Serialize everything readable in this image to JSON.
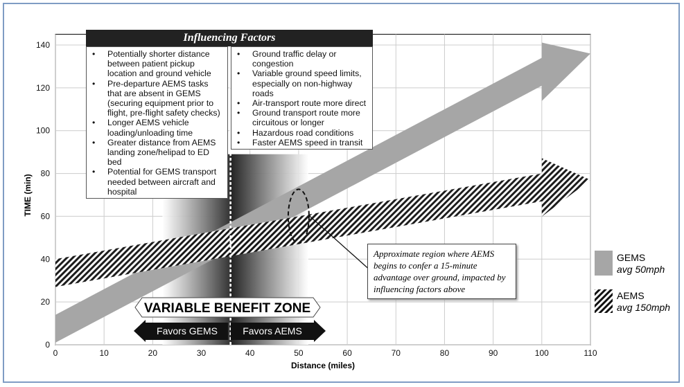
{
  "chart_data": {
    "type": "area",
    "xlabel": "Distance (miles)",
    "ylabel": "TIME (min)",
    "xlim": [
      0,
      110
    ],
    "ylim": [
      0,
      145
    ],
    "xticks": [
      0,
      10,
      20,
      30,
      40,
      50,
      60,
      70,
      80,
      90,
      100,
      110
    ],
    "yticks": [
      0,
      20,
      40,
      60,
      80,
      100,
      120,
      140
    ],
    "grid": true,
    "legend_position": "right",
    "series": [
      {
        "name": "GEMS",
        "sublabel": "avg 50mph",
        "style": "solid",
        "color": "#a6a6a6",
        "band": {
          "x": [
            0,
            100
          ],
          "lower": [
            1,
            121
          ],
          "upper": [
            14,
            134
          ]
        },
        "arrow_tip": [
          110,
          136
        ]
      },
      {
        "name": "AEMS",
        "sublabel": "avg 150mph",
        "style": "hatched",
        "color": "#111111",
        "band": {
          "x": [
            0,
            100
          ],
          "lower": [
            27,
            67
          ],
          "upper": [
            40,
            80
          ]
        },
        "arrow_tip": [
          110,
          77
        ]
      }
    ],
    "variable_benefit_zone": {
      "label": "VARIABLE BENEFIT ZONE",
      "x_range": [
        22,
        52
      ],
      "divider_x": 36,
      "left_label": "Favors GEMS",
      "right_label": "Favors AEMS"
    },
    "highlight_ellipse": {
      "center": [
        50,
        60
      ],
      "note": "Approximate region where AEMS begins to confer a 15-minute advantage over ground, impacted by influencing factors above"
    }
  },
  "factors": {
    "title": "Influencing Factors",
    "left": [
      "Potentially shorter distance between patient pickup location and ground vehicle",
      "Pre-departure AEMS tasks that are absent in GEMS (securing equipment prior to flight, pre-flight safety checks)",
      "Longer AEMS vehicle loading/unloading time",
      "Greater distance from AEMS landing zone/helipad to ED bed",
      "Potential for GEMS transport needed between aircraft and hospital"
    ],
    "right": [
      "Ground traffic delay or congestion",
      "Variable ground speed limits, especially on non-highway roads",
      "Air-transport route more direct",
      "Ground transport route more circuitous or longer",
      "Hazardous road conditions",
      "Faster AEMS speed in transit"
    ]
  }
}
